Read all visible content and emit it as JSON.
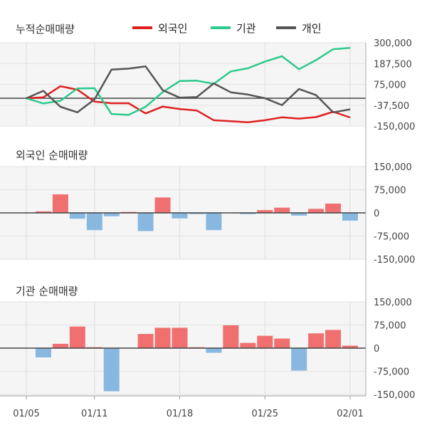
{
  "legend": [
    {
      "name": "외국인",
      "color": "#e02020"
    },
    {
      "name": "기관",
      "color": "#2ec98c"
    },
    {
      "name": "개인",
      "color": "#555555"
    }
  ],
  "colors": {
    "positive_bar": "#f07070",
    "negative_bar": "#88b8e0"
  },
  "chart_data": [
    {
      "type": "line",
      "title": "누적순매매량",
      "x": [
        "01/05",
        "01/06",
        "01/07",
        "01/08",
        "01/11",
        "01/12",
        "01/13",
        "01/14",
        "01/15",
        "01/18",
        "01/19",
        "01/20",
        "01/21",
        "01/22",
        "01/25",
        "01/26",
        "01/27",
        "01/28",
        "01/29",
        "02/01"
      ],
      "ylim": [
        -150000,
        300000
      ],
      "yticks": [
        300000,
        187500,
        75000,
        -37500,
        -150000
      ],
      "ytick_labels": [
        "300,000",
        "187,500",
        "75,000",
        "-37,500",
        "-150,000"
      ],
      "zero_line": 0,
      "series": [
        {
          "name": "외국인",
          "color": "#e02020",
          "values": [
            0,
            5000,
            65000,
            46000,
            -18000,
            -27000,
            -27000,
            -82000,
            -45000,
            -58000,
            -66000,
            -119000,
            -124000,
            -130000,
            -119000,
            -103000,
            -110000,
            -102000,
            -73000,
            -104000
          ]
        },
        {
          "name": "기관",
          "color": "#2ec98c",
          "values": [
            0,
            -28000,
            -14000,
            53000,
            54000,
            -85000,
            -90000,
            -46000,
            33000,
            93000,
            95000,
            78000,
            145000,
            162000,
            198000,
            227000,
            157000,
            206000,
            265000,
            272000
          ]
        },
        {
          "name": "개인",
          "color": "#555555",
          "values": [
            0,
            40000,
            -46000,
            -76000,
            -6000,
            155000,
            160000,
            172000,
            44000,
            3000,
            6000,
            80000,
            32000,
            20000,
            0,
            -37000,
            50000,
            17000,
            -76000,
            -60000
          ]
        }
      ]
    },
    {
      "type": "bar",
      "title": "외국인 순매매량",
      "categories": [
        "01/05",
        "01/06",
        "01/07",
        "01/08",
        "01/11",
        "01/12",
        "01/13",
        "01/14",
        "01/15",
        "01/18",
        "01/19",
        "01/20",
        "01/21",
        "01/22",
        "01/25",
        "01/26",
        "01/27",
        "01/28",
        "01/29",
        "02/01"
      ],
      "values": [
        0,
        5000,
        60000,
        -19000,
        -56000,
        -11000,
        3000,
        -59000,
        50000,
        -18000,
        -4000,
        -56000,
        0,
        -4000,
        9000,
        17000,
        -9000,
        13000,
        30000,
        -25000
      ],
      "ylim": [
        -150000,
        150000
      ],
      "yticks": [
        150000,
        75000,
        0,
        -75000,
        -150000
      ],
      "ytick_labels": [
        "150,000",
        "75,000",
        "0",
        "-75,000",
        "-150,000"
      ]
    },
    {
      "type": "bar",
      "title": "기관 순매매량",
      "categories": [
        "01/05",
        "01/06",
        "01/07",
        "01/08",
        "01/11",
        "01/12",
        "01/13",
        "01/14",
        "01/15",
        "01/18",
        "01/19",
        "01/20",
        "01/21",
        "01/22",
        "01/25",
        "01/26",
        "01/27",
        "01/28",
        "01/29",
        "02/01"
      ],
      "values": [
        0,
        -30000,
        14000,
        70000,
        3000,
        -140000,
        0,
        46000,
        66000,
        66000,
        3000,
        -15000,
        74000,
        17000,
        40000,
        31000,
        -73000,
        48000,
        59000,
        8000
      ],
      "ylim": [
        -150000,
        150000
      ],
      "yticks": [
        150000,
        75000,
        0,
        -75000,
        -150000
      ],
      "ytick_labels": [
        "150,000",
        "75,000",
        "0",
        "-75,000",
        "-150,000"
      ]
    }
  ],
  "x_axis": {
    "tick_labels": [
      "01/05",
      "01/11",
      "01/18",
      "01/25",
      "02/01"
    ],
    "tick_indices": [
      0,
      4,
      9,
      14,
      19
    ]
  }
}
